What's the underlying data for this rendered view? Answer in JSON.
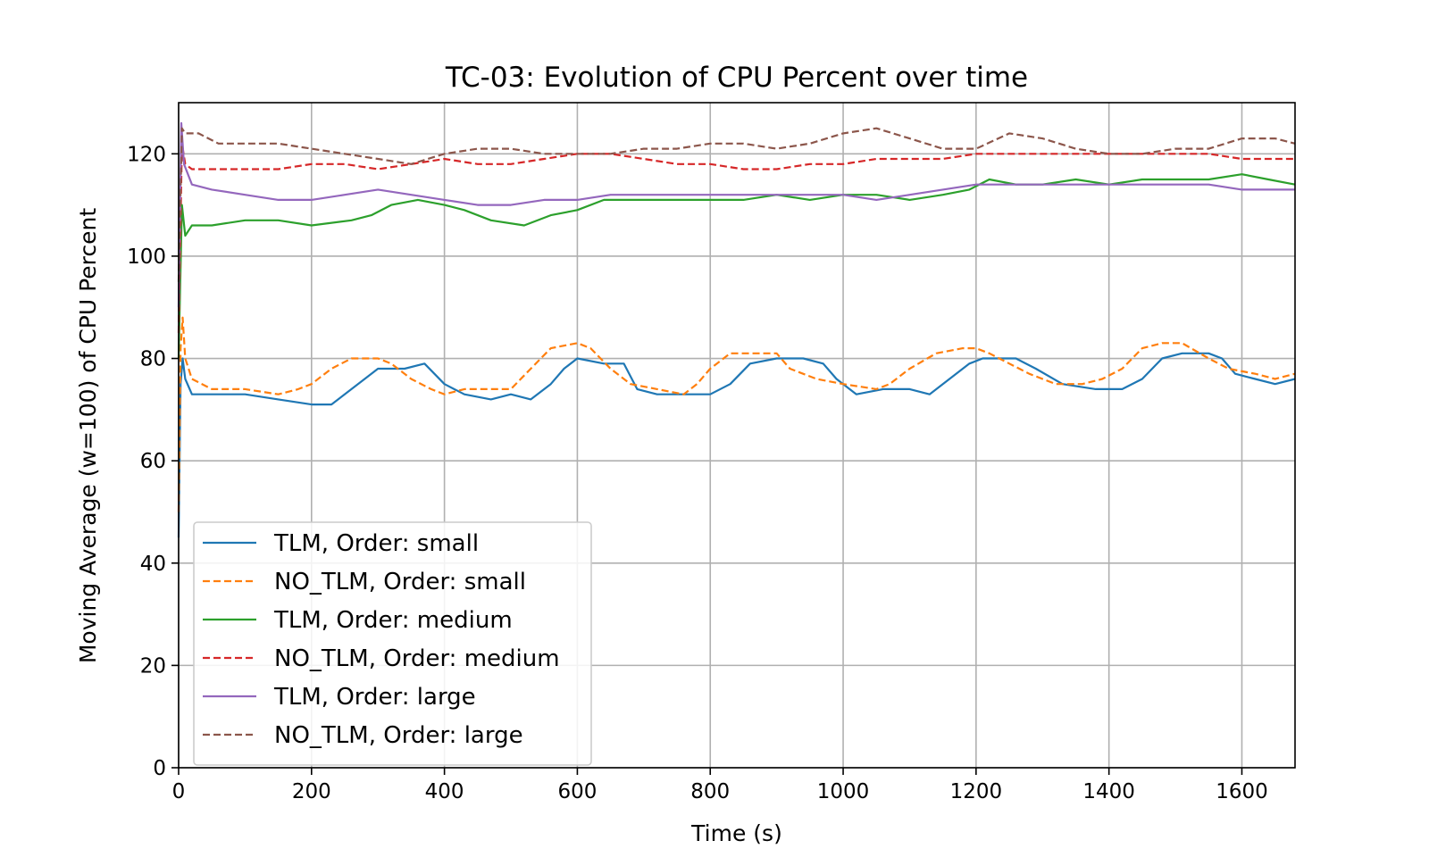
{
  "chart_data": {
    "type": "line",
    "title": "TC-03: Evolution of CPU Percent over time",
    "xlabel": "Time (s)",
    "ylabel": "Moving Average (w=100) of CPU Percent",
    "xlim": [
      0,
      1680
    ],
    "ylim": [
      0,
      130
    ],
    "xticks": [
      0,
      200,
      400,
      600,
      800,
      1000,
      1200,
      1400,
      1600
    ],
    "yticks": [
      0,
      20,
      40,
      60,
      80,
      100,
      120
    ],
    "grid": true,
    "legend_position": "lower-left",
    "series": [
      {
        "name": "TLM, Order: small",
        "color": "#1f77b4",
        "dash": "solid",
        "points": [
          [
            0,
            45
          ],
          [
            3,
            75
          ],
          [
            6,
            80
          ],
          [
            10,
            76
          ],
          [
            20,
            73
          ],
          [
            50,
            73
          ],
          [
            100,
            73
          ],
          [
            150,
            72
          ],
          [
            200,
            71
          ],
          [
            230,
            71
          ],
          [
            260,
            74
          ],
          [
            280,
            76
          ],
          [
            300,
            78
          ],
          [
            340,
            78
          ],
          [
            370,
            79
          ],
          [
            400,
            75
          ],
          [
            430,
            73
          ],
          [
            470,
            72
          ],
          [
            500,
            73
          ],
          [
            530,
            72
          ],
          [
            560,
            75
          ],
          [
            580,
            78
          ],
          [
            600,
            80
          ],
          [
            640,
            79
          ],
          [
            670,
            79
          ],
          [
            690,
            74
          ],
          [
            720,
            73
          ],
          [
            760,
            73
          ],
          [
            800,
            73
          ],
          [
            830,
            75
          ],
          [
            860,
            79
          ],
          [
            900,
            80
          ],
          [
            940,
            80
          ],
          [
            970,
            79
          ],
          [
            990,
            76
          ],
          [
            1020,
            73
          ],
          [
            1060,
            74
          ],
          [
            1100,
            74
          ],
          [
            1130,
            73
          ],
          [
            1160,
            76
          ],
          [
            1190,
            79
          ],
          [
            1210,
            80
          ],
          [
            1260,
            80
          ],
          [
            1290,
            78
          ],
          [
            1330,
            75
          ],
          [
            1380,
            74
          ],
          [
            1420,
            74
          ],
          [
            1450,
            76
          ],
          [
            1480,
            80
          ],
          [
            1510,
            81
          ],
          [
            1550,
            81
          ],
          [
            1570,
            80
          ],
          [
            1590,
            77
          ],
          [
            1620,
            76
          ],
          [
            1650,
            75
          ],
          [
            1680,
            76
          ]
        ]
      },
      {
        "name": "NO_TLM, Order: small",
        "color": "#ff7f0e",
        "dash": "dashed",
        "points": [
          [
            0,
            50
          ],
          [
            3,
            82
          ],
          [
            6,
            88
          ],
          [
            10,
            80
          ],
          [
            20,
            76
          ],
          [
            50,
            74
          ],
          [
            100,
            74
          ],
          [
            150,
            73
          ],
          [
            180,
            74
          ],
          [
            200,
            75
          ],
          [
            230,
            78
          ],
          [
            260,
            80
          ],
          [
            300,
            80
          ],
          [
            320,
            79
          ],
          [
            350,
            76
          ],
          [
            380,
            74
          ],
          [
            400,
            73
          ],
          [
            430,
            74
          ],
          [
            470,
            74
          ],
          [
            500,
            74
          ],
          [
            530,
            78
          ],
          [
            560,
            82
          ],
          [
            600,
            83
          ],
          [
            620,
            82
          ],
          [
            650,
            78
          ],
          [
            680,
            75
          ],
          [
            720,
            74
          ],
          [
            760,
            73
          ],
          [
            780,
            75
          ],
          [
            800,
            78
          ],
          [
            830,
            81
          ],
          [
            880,
            81
          ],
          [
            900,
            81
          ],
          [
            920,
            78
          ],
          [
            960,
            76
          ],
          [
            1000,
            75
          ],
          [
            1050,
            74
          ],
          [
            1070,
            75
          ],
          [
            1100,
            78
          ],
          [
            1140,
            81
          ],
          [
            1180,
            82
          ],
          [
            1200,
            82
          ],
          [
            1220,
            81
          ],
          [
            1250,
            79
          ],
          [
            1280,
            77
          ],
          [
            1320,
            75
          ],
          [
            1360,
            75
          ],
          [
            1390,
            76
          ],
          [
            1420,
            78
          ],
          [
            1450,
            82
          ],
          [
            1480,
            83
          ],
          [
            1510,
            83
          ],
          [
            1550,
            80
          ],
          [
            1580,
            78
          ],
          [
            1620,
            77
          ],
          [
            1650,
            76
          ],
          [
            1680,
            77
          ]
        ]
      },
      {
        "name": "TLM, Order: medium",
        "color": "#2ca02c",
        "dash": "solid",
        "points": [
          [
            0,
            80
          ],
          [
            5,
            110
          ],
          [
            10,
            104
          ],
          [
            20,
            106
          ],
          [
            50,
            106
          ],
          [
            100,
            107
          ],
          [
            150,
            107
          ],
          [
            200,
            106
          ],
          [
            260,
            107
          ],
          [
            290,
            108
          ],
          [
            320,
            110
          ],
          [
            360,
            111
          ],
          [
            400,
            110
          ],
          [
            430,
            109
          ],
          [
            470,
            107
          ],
          [
            520,
            106
          ],
          [
            560,
            108
          ],
          [
            600,
            109
          ],
          [
            640,
            111
          ],
          [
            700,
            111
          ],
          [
            750,
            111
          ],
          [
            800,
            111
          ],
          [
            850,
            111
          ],
          [
            900,
            112
          ],
          [
            950,
            111
          ],
          [
            1000,
            112
          ],
          [
            1050,
            112
          ],
          [
            1100,
            111
          ],
          [
            1150,
            112
          ],
          [
            1190,
            113
          ],
          [
            1220,
            115
          ],
          [
            1260,
            114
          ],
          [
            1300,
            114
          ],
          [
            1350,
            115
          ],
          [
            1400,
            114
          ],
          [
            1450,
            115
          ],
          [
            1500,
            115
          ],
          [
            1550,
            115
          ],
          [
            1600,
            116
          ],
          [
            1640,
            115
          ],
          [
            1680,
            114
          ]
        ]
      },
      {
        "name": "NO_TLM, Order: medium",
        "color": "#d62728",
        "dash": "dashed",
        "points": [
          [
            0,
            85
          ],
          [
            5,
            122
          ],
          [
            10,
            118
          ],
          [
            20,
            117
          ],
          [
            50,
            117
          ],
          [
            100,
            117
          ],
          [
            150,
            117
          ],
          [
            200,
            118
          ],
          [
            250,
            118
          ],
          [
            300,
            117
          ],
          [
            350,
            118
          ],
          [
            400,
            119
          ],
          [
            450,
            118
          ],
          [
            500,
            118
          ],
          [
            550,
            119
          ],
          [
            600,
            120
          ],
          [
            650,
            120
          ],
          [
            700,
            119
          ],
          [
            750,
            118
          ],
          [
            800,
            118
          ],
          [
            850,
            117
          ],
          [
            900,
            117
          ],
          [
            950,
            118
          ],
          [
            1000,
            118
          ],
          [
            1050,
            119
          ],
          [
            1100,
            119
          ],
          [
            1150,
            119
          ],
          [
            1200,
            120
          ],
          [
            1250,
            120
          ],
          [
            1300,
            120
          ],
          [
            1350,
            120
          ],
          [
            1400,
            120
          ],
          [
            1450,
            120
          ],
          [
            1500,
            120
          ],
          [
            1550,
            120
          ],
          [
            1600,
            119
          ],
          [
            1650,
            119
          ],
          [
            1680,
            119
          ]
        ]
      },
      {
        "name": "TLM, Order: large",
        "color": "#9467bd",
        "dash": "solid",
        "points": [
          [
            0,
            90
          ],
          [
            4,
            126
          ],
          [
            8,
            118
          ],
          [
            20,
            114
          ],
          [
            50,
            113
          ],
          [
            100,
            112
          ],
          [
            150,
            111
          ],
          [
            200,
            111
          ],
          [
            250,
            112
          ],
          [
            300,
            113
          ],
          [
            350,
            112
          ],
          [
            400,
            111
          ],
          [
            450,
            110
          ],
          [
            500,
            110
          ],
          [
            550,
            111
          ],
          [
            600,
            111
          ],
          [
            650,
            112
          ],
          [
            700,
            112
          ],
          [
            750,
            112
          ],
          [
            800,
            112
          ],
          [
            850,
            112
          ],
          [
            900,
            112
          ],
          [
            950,
            112
          ],
          [
            1000,
            112
          ],
          [
            1050,
            111
          ],
          [
            1100,
            112
          ],
          [
            1150,
            113
          ],
          [
            1200,
            114
          ],
          [
            1250,
            114
          ],
          [
            1300,
            114
          ],
          [
            1350,
            114
          ],
          [
            1400,
            114
          ],
          [
            1450,
            114
          ],
          [
            1500,
            114
          ],
          [
            1550,
            114
          ],
          [
            1600,
            113
          ],
          [
            1650,
            113
          ],
          [
            1680,
            113
          ]
        ]
      },
      {
        "name": "NO_TLM, Order: large",
        "color": "#8c564b",
        "dash": "dashed",
        "points": [
          [
            0,
            95
          ],
          [
            5,
            125
          ],
          [
            10,
            124
          ],
          [
            30,
            124
          ],
          [
            60,
            122
          ],
          [
            100,
            122
          ],
          [
            150,
            122
          ],
          [
            200,
            121
          ],
          [
            250,
            120
          ],
          [
            300,
            119
          ],
          [
            350,
            118
          ],
          [
            400,
            120
          ],
          [
            450,
            121
          ],
          [
            500,
            121
          ],
          [
            550,
            120
          ],
          [
            600,
            120
          ],
          [
            650,
            120
          ],
          [
            700,
            121
          ],
          [
            750,
            121
          ],
          [
            800,
            122
          ],
          [
            850,
            122
          ],
          [
            900,
            121
          ],
          [
            950,
            122
          ],
          [
            1000,
            124
          ],
          [
            1050,
            125
          ],
          [
            1100,
            123
          ],
          [
            1150,
            121
          ],
          [
            1200,
            121
          ],
          [
            1250,
            124
          ],
          [
            1300,
            123
          ],
          [
            1350,
            121
          ],
          [
            1400,
            120
          ],
          [
            1450,
            120
          ],
          [
            1500,
            121
          ],
          [
            1550,
            121
          ],
          [
            1600,
            123
          ],
          [
            1650,
            123
          ],
          [
            1680,
            122
          ]
        ]
      }
    ]
  }
}
